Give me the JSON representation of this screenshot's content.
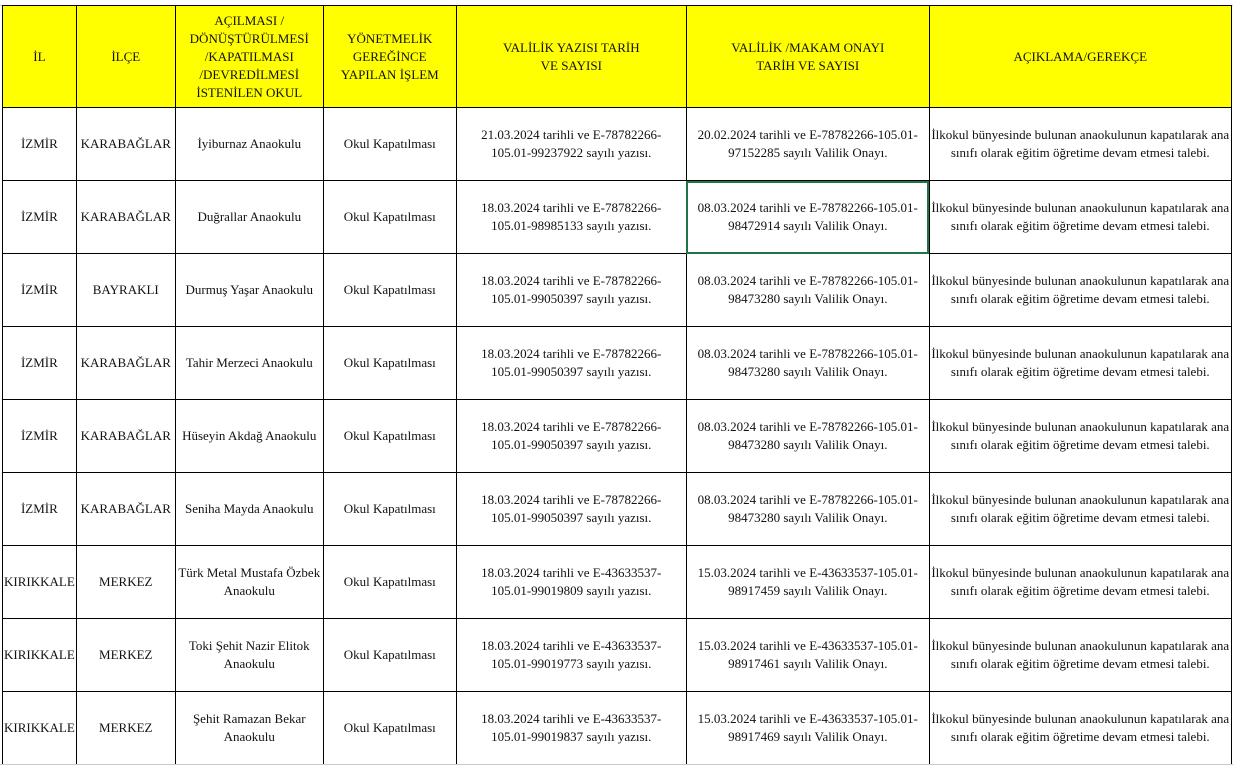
{
  "headers": [
    "İL",
    "İLÇE",
    "AÇILMASI / DÖNÜŞTÜRÜLMESİ /KAPATILMASI /DEVREDİLMESİ İSTENİLEN OKUL",
    "YÖNETMELİK GEREĞİNCE YAPILAN İŞLEM",
    "VALİLİK YAZISI TARİH VE SAYISI",
    "VALİLİK /MAKAM ONAYI TARİH VE SAYISI",
    "AÇIKLAMA/GEREKÇE"
  ],
  "rows": [
    {
      "il": "İZMİR",
      "ilce": "KARABAĞLAR",
      "okul": "İyiburnaz Anaokulu",
      "islem": "Okul Kapatılması",
      "yazi": "21.03.2024 tarihli ve E-78782266-105.01-99237922 sayılı yazısı.",
      "onay": "20.02.2024 tarihli ve E-78782266-105.01-97152285 sayılı Valilik Onayı.",
      "aciklama": "İlkokul bünyesinde bulunan anaokulunun kapatılarak ana sınıfı olarak eğitim öğretime devam etmesi talebi."
    },
    {
      "il": "İZMİR",
      "ilce": "KARABAĞLAR",
      "okul": "Duğrallar Anaokulu",
      "islem": "Okul Kapatılması",
      "yazi": "18.03.2024 tarihli ve E-78782266-105.01-98985133 sayılı yazısı.",
      "onay": "08.03.2024 tarihli ve E-78782266-105.01-98472914 sayılı Valilik Onayı.",
      "aciklama": "İlkokul bünyesinde bulunan anaokulunun kapatılarak ana sınıfı olarak eğitim öğretime devam etmesi talebi."
    },
    {
      "il": "İZMİR",
      "ilce": "BAYRAKLI",
      "okul": "Durmuş Yaşar Anaokulu",
      "islem": "Okul Kapatılması",
      "yazi": "18.03.2024 tarihli ve  E-78782266-105.01-99050397 sayılı yazısı.",
      "onay": "08.03.2024 tarihli ve E-78782266-105.01-98473280 sayılı Valilik Onayı.",
      "aciklama": "İlkokul bünyesinde bulunan anaokulunun kapatılarak ana sınıfı olarak eğitim öğretime devam etmesi talebi."
    },
    {
      "il": "İZMİR",
      "ilce": "KARABAĞLAR",
      "okul": "Tahir Merzeci Anaokulu",
      "islem": "Okul Kapatılması",
      "yazi": "18.03.2024 tarihli ve  E-78782266-105.01-99050397 sayılı yazısı.",
      "onay": "08.03.2024 tarihli ve E-78782266-105.01-98473280 sayılı Valilik Onayı.",
      "aciklama": "İlkokul bünyesinde bulunan anaokulunun kapatılarak ana sınıfı olarak eğitim öğretime devam etmesi talebi."
    },
    {
      "il": "İZMİR",
      "ilce": "KARABAĞLAR",
      "okul": "Hüseyin Akdağ Anaokulu",
      "islem": "Okul Kapatılması",
      "yazi": "18.03.2024 tarihli ve  E-78782266-105.01-99050397 sayılı yazısı.",
      "onay": "08.03.2024 tarihli ve E-78782266-105.01-98473280 sayılı Valilik Onayı.",
      "aciklama": "İlkokul bünyesinde bulunan anaokulunun kapatılarak ana sınıfı olarak eğitim öğretime devam etmesi talebi."
    },
    {
      "il": "İZMİR",
      "ilce": "KARABAĞLAR",
      "okul": "Seniha Mayda Anaokulu",
      "islem": "Okul Kapatılması",
      "yazi": "18.03.2024 tarihli ve  E-78782266-105.01-99050397 sayılı yazısı.",
      "onay": "08.03.2024 tarihli ve E-78782266-105.01-98473280 sayılı Valilik Onayı.",
      "aciklama": "İlkokul bünyesinde bulunan anaokulunun kapatılarak ana sınıfı olarak eğitim öğretime devam etmesi talebi."
    },
    {
      "il": "KIRIKKALE",
      "ilce": "MERKEZ",
      "okul": "Türk Metal Mustafa Özbek Anaokulu",
      "islem": "Okul Kapatılması",
      "yazi": "18.03.2024 tarihli ve E-43633537-105.01-99019809 sayılı yazısı.",
      "onay": "15.03.2024 tarihli  ve  E-43633537-105.01-98917459  sayılı Valilik Onayı.",
      "aciklama": "İlkokul bünyesinde bulunan anaokulunun kapatılarak ana sınıfı olarak eğitim öğretime devam etmesi talebi."
    },
    {
      "il": "KIRIKKALE",
      "ilce": "MERKEZ",
      "okul": "Toki Şehit Nazir Elitok Anaokulu",
      "islem": "Okul Kapatılması",
      "yazi": "18.03.2024 tarihli ve E-43633537-105.01-99019773 sayılı yazısı.",
      "onay": "15.03.2024 tarihli ve E-43633537-105.01-98917461 sayılı Valilik Onayı.",
      "aciklama": "İlkokul bünyesinde bulunan anaokulunun kapatılarak ana sınıfı olarak eğitim öğretime devam etmesi talebi."
    },
    {
      "il": "KIRIKKALE",
      "ilce": "MERKEZ",
      "okul": "Şehit Ramazan Bekar Anaokulu",
      "islem": "Okul Kapatılması",
      "yazi": "18.03.2024 tarihli ve E-43633537-105.01-99019837 sayılı yazısı.",
      "onay": "15.03.2024 tarihli ve E-43633537-105.01-98917469 sayılı Valilik Onayı.",
      "aciklama": "İlkokul bünyesinde bulunan anaokulunun kapatılarak ana sınıfı olarak eğitim öğretime devam etmesi talebi."
    }
  ],
  "header_color": "#ffff00",
  "selection_color": "#217346"
}
